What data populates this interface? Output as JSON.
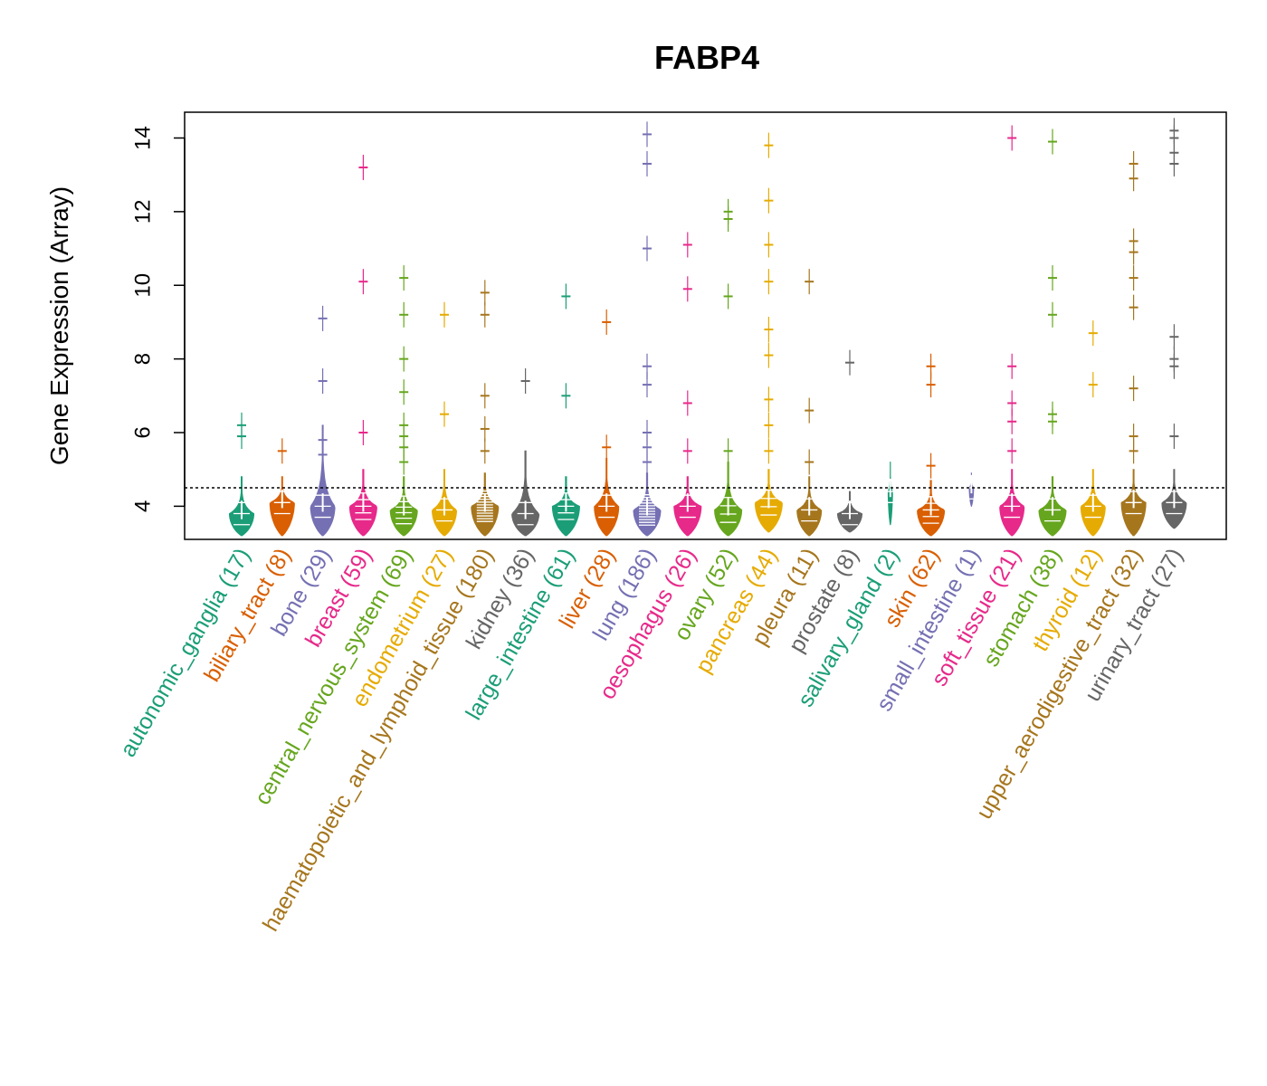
{
  "chart_data": {
    "type": "violin",
    "title": "FABP4",
    "xlabel": "",
    "ylabel": "Gene Expression (Array)",
    "ylim": [
      3.1,
      14.7
    ],
    "yticks": [
      4,
      6,
      8,
      10,
      12,
      14
    ],
    "reference_line": 4.5,
    "categories": [
      {
        "name": "autonomic_ganglia",
        "n": 17,
        "label": "autonomic_ganglia (17)",
        "color": "#1B9E77",
        "center": 3.8,
        "min": 3.2,
        "max": 4.8,
        "width": 0.45,
        "outliers": [
          6.2,
          5.9
        ]
      },
      {
        "name": "biliary_tract",
        "n": 8,
        "label": "biliary_tract (8)",
        "color": "#D95F02",
        "center": 4.1,
        "min": 3.2,
        "max": 4.8,
        "width": 0.45,
        "outliers": [
          5.5
        ]
      },
      {
        "name": "bone",
        "n": 29,
        "label": "bone (29)",
        "color": "#7570B3",
        "center": 4.0,
        "min": 3.2,
        "max": 6.2,
        "width": 0.45,
        "outliers": [
          9.1,
          7.4,
          5.8,
          5.4
        ]
      },
      {
        "name": "breast",
        "n": 59,
        "label": "breast (59)",
        "color": "#E7298A",
        "center": 4.0,
        "min": 3.2,
        "max": 5.0,
        "width": 0.5,
        "outliers": [
          13.2,
          10.1,
          6.0
        ]
      },
      {
        "name": "central_nervous_system",
        "n": 69,
        "label": "central_nervous_system (69)",
        "color": "#66A61E",
        "center": 3.9,
        "min": 3.2,
        "max": 4.8,
        "width": 0.5,
        "outliers": [
          10.2,
          9.2,
          8.0,
          7.1,
          6.2,
          5.9,
          5.6,
          5.2
        ]
      },
      {
        "name": "endometrium",
        "n": 27,
        "label": "endometrium (27)",
        "color": "#E6AB02",
        "center": 3.9,
        "min": 3.2,
        "max": 5.0,
        "width": 0.45,
        "outliers": [
          9.2,
          6.5
        ]
      },
      {
        "name": "haematopoietic_and_lymphoid_tissue",
        "n": 180,
        "label": "haematopoietic_and_lymphoid_tissue (180)",
        "color": "#A6761D",
        "center": 4.0,
        "min": 3.2,
        "max": 4.9,
        "width": 0.5,
        "outliers": [
          9.8,
          9.2,
          7.0,
          6.1,
          5.5
        ]
      },
      {
        "name": "kidney",
        "n": 36,
        "label": "kidney (36)",
        "color": "#666666",
        "center": 3.8,
        "min": 3.2,
        "max": 5.5,
        "width": 0.5,
        "outliers": [
          7.4
        ]
      },
      {
        "name": "large_intestine",
        "n": 61,
        "label": "large_intestine (61)",
        "color": "#1B9E77",
        "center": 4.0,
        "min": 3.2,
        "max": 4.8,
        "width": 0.5,
        "outliers": [
          9.7,
          7.0
        ]
      },
      {
        "name": "liver",
        "n": 28,
        "label": "liver (28)",
        "color": "#D95F02",
        "center": 4.0,
        "min": 3.2,
        "max": 5.3,
        "width": 0.45,
        "outliers": [
          9.0,
          5.6
        ]
      },
      {
        "name": "lung",
        "n": 186,
        "label": "lung (186)",
        "color": "#7570B3",
        "center": 3.9,
        "min": 3.2,
        "max": 4.9,
        "width": 0.5,
        "outliers": [
          14.1,
          13.3,
          11.0,
          7.8,
          7.3,
          6.0,
          5.6,
          5.2
        ]
      },
      {
        "name": "oesophagus",
        "n": 26,
        "label": "oesophagus (26)",
        "color": "#E7298A",
        "center": 4.0,
        "min": 3.2,
        "max": 4.8,
        "width": 0.5,
        "outliers": [
          11.1,
          9.9,
          6.8,
          5.5
        ]
      },
      {
        "name": "ovary",
        "n": 52,
        "label": "ovary (52)",
        "color": "#66A61E",
        "center": 3.9,
        "min": 3.2,
        "max": 5.2,
        "width": 0.5,
        "outliers": [
          12.0,
          11.8,
          9.7,
          5.5
        ]
      },
      {
        "name": "pancreas",
        "n": 44,
        "label": "pancreas (44)",
        "color": "#E6AB02",
        "center": 4.1,
        "min": 3.3,
        "max": 5.0,
        "width": 0.5,
        "outliers": [
          13.8,
          12.3,
          11.1,
          10.1,
          8.8,
          8.1,
          6.9,
          6.2,
          5.5
        ]
      },
      {
        "name": "pleura",
        "n": 11,
        "label": "pleura (11)",
        "color": "#A6761D",
        "center": 3.9,
        "min": 3.2,
        "max": 4.8,
        "width": 0.45,
        "outliers": [
          10.1,
          6.6,
          5.2
        ]
      },
      {
        "name": "prostate",
        "n": 8,
        "label": "prostate (8)",
        "color": "#666666",
        "center": 3.8,
        "min": 3.3,
        "max": 4.4,
        "width": 0.45,
        "outliers": [
          7.9
        ]
      },
      {
        "name": "salivary_gland",
        "n": 2,
        "label": "salivary_gland (2)",
        "color": "#1B9E77",
        "center": 4.4,
        "min": 3.5,
        "max": 5.2,
        "width": 0.08,
        "outliers": []
      },
      {
        "name": "skin",
        "n": 62,
        "label": "skin (62)",
        "color": "#D95F02",
        "center": 3.9,
        "min": 3.2,
        "max": 4.7,
        "width": 0.5,
        "outliers": [
          7.8,
          7.3,
          5.1
        ]
      },
      {
        "name": "small_intestine",
        "n": 1,
        "label": "small_intestine (1)",
        "color": "#7570B3",
        "center": 4.5,
        "min": 4.0,
        "max": 4.9,
        "width": 0.08,
        "outliers": []
      },
      {
        "name": "soft_tissue",
        "n": 21,
        "label": "soft_tissue (21)",
        "color": "#E7298A",
        "center": 4.0,
        "min": 3.2,
        "max": 5.0,
        "width": 0.45,
        "outliers": [
          14.0,
          7.8,
          6.8,
          6.3,
          5.5
        ]
      },
      {
        "name": "stomach",
        "n": 38,
        "label": "stomach (38)",
        "color": "#66A61E",
        "center": 3.9,
        "min": 3.2,
        "max": 4.8,
        "width": 0.5,
        "outliers": [
          13.9,
          10.2,
          9.2,
          6.5,
          6.3
        ]
      },
      {
        "name": "thyroid",
        "n": 12,
        "label": "thyroid (12)",
        "color": "#E6AB02",
        "center": 4.0,
        "min": 3.2,
        "max": 5.0,
        "width": 0.45,
        "outliers": [
          8.7,
          7.3
        ]
      },
      {
        "name": "upper_aerodigestive_tract",
        "n": 32,
        "label": "upper_aerodigestive_tract (32)",
        "color": "#A6761D",
        "center": 4.1,
        "min": 3.2,
        "max": 5.0,
        "width": 0.45,
        "outliers": [
          13.3,
          12.9,
          11.2,
          10.9,
          10.2,
          9.4,
          7.2,
          5.9,
          5.5
        ]
      },
      {
        "name": "urinary_tract",
        "n": 27,
        "label": "urinary_tract (27)",
        "color": "#666666",
        "center": 4.1,
        "min": 3.4,
        "max": 5.0,
        "width": 0.45,
        "outliers": [
          14.2,
          14.0,
          13.6,
          13.3,
          8.6,
          8.0,
          7.8,
          5.9
        ]
      }
    ]
  }
}
